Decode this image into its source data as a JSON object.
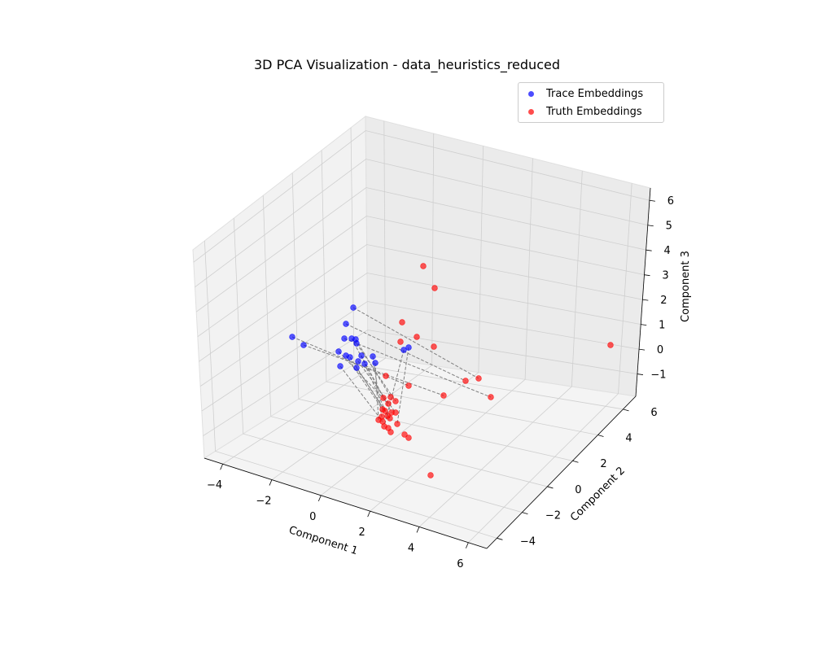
{
  "chart_data": {
    "type": "scatter",
    "title": "3D PCA Visualization - data_heuristics_reduced",
    "xlabel": "Component 1",
    "ylabel": "Component 2",
    "zlabel": "Component 3",
    "xticks": [
      "−4",
      "−2",
      "0",
      "2",
      "4",
      "6"
    ],
    "yticks": [
      "−4",
      "−2",
      "0",
      "2",
      "4",
      "6"
    ],
    "zticks": [
      "−1",
      "0",
      "1",
      "2",
      "3",
      "4",
      "5",
      "6"
    ],
    "grid": true,
    "legend_position": "upper-right",
    "series": [
      {
        "name": "Trace Embeddings",
        "color": "#0000ff",
        "points_screen": [
          [
            434,
            378
          ],
          [
            425,
            398
          ],
          [
            359,
            414
          ],
          [
            373,
            424
          ],
          [
            423,
            416
          ],
          [
            432,
            416
          ],
          [
            437,
            417
          ],
          [
            438,
            422
          ],
          [
            416,
            432
          ],
          [
            425,
            437
          ],
          [
            430,
            439
          ],
          [
            444,
            437
          ],
          [
            440,
            444
          ],
          [
            458,
            438
          ],
          [
            448,
            447
          ],
          [
            461,
            446
          ],
          [
            418,
            450
          ],
          [
            438,
            452
          ],
          [
            502,
            427
          ],
          [
            496,
            430
          ]
        ]
      },
      {
        "name": "Truth Embeddings",
        "color": "#ff0000",
        "points_screen": [
          [
            520,
            327
          ],
          [
            534,
            354
          ],
          [
            494,
            396
          ],
          [
            512,
            414
          ],
          [
            492,
            420
          ],
          [
            533,
            426
          ],
          [
            750,
            424
          ],
          [
            474,
            462
          ],
          [
            588,
            465
          ],
          [
            572,
            468
          ],
          [
            502,
            474
          ],
          [
            545,
            486
          ],
          [
            603,
            488
          ],
          [
            471,
            489
          ],
          [
            480,
            488
          ],
          [
            486,
            493
          ],
          [
            477,
            496
          ],
          [
            470,
            503
          ],
          [
            473,
            505
          ],
          [
            481,
            507
          ],
          [
            486,
            507
          ],
          [
            469,
            512
          ],
          [
            476,
            511
          ],
          [
            465,
            516
          ],
          [
            470,
            518
          ],
          [
            479,
            514
          ],
          [
            488,
            521
          ],
          [
            472,
            524
          ],
          [
            477,
            526
          ],
          [
            480,
            531
          ],
          [
            497,
            534
          ],
          [
            502,
            538
          ],
          [
            529,
            584
          ]
        ]
      }
    ]
  }
}
